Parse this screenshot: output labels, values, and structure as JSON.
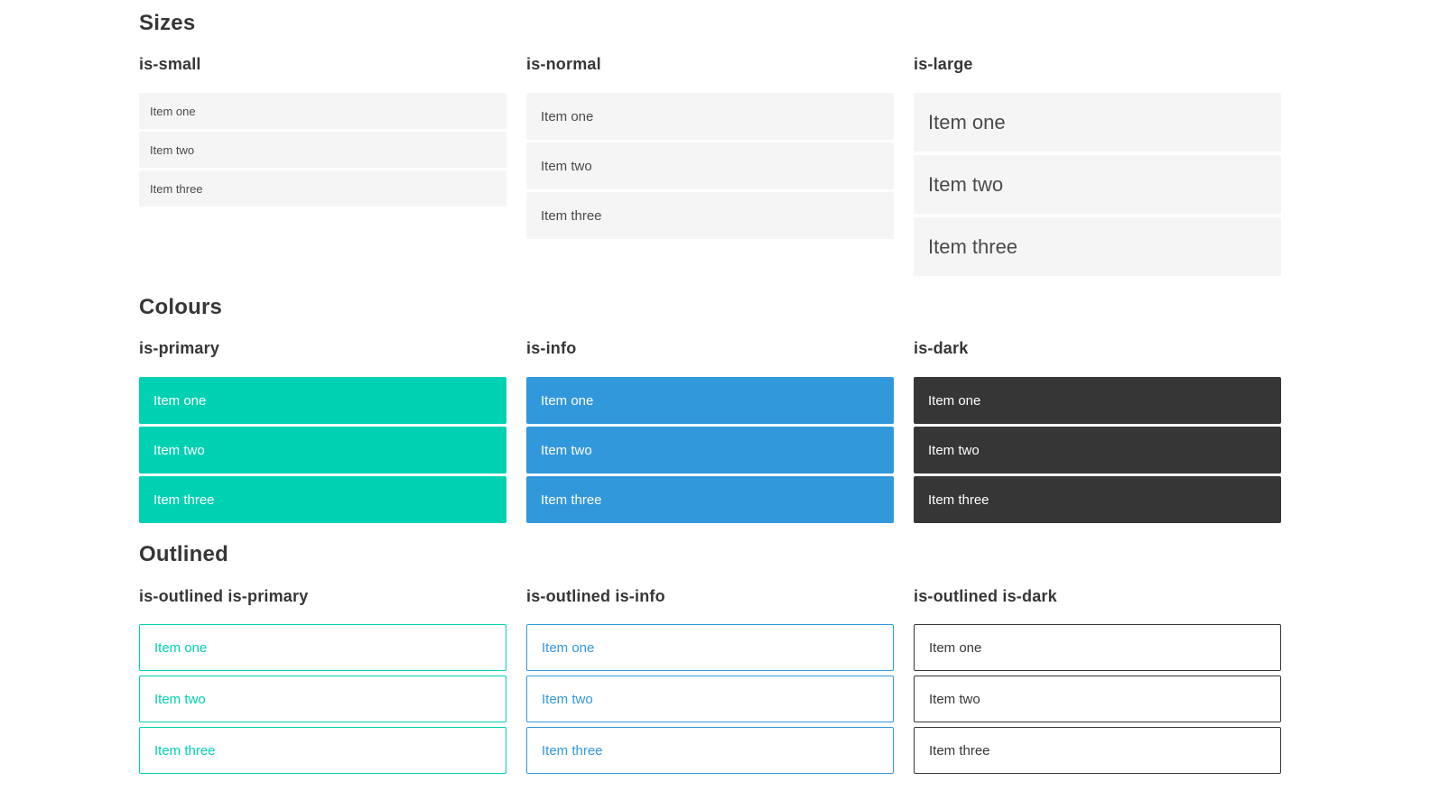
{
  "colors": {
    "primary": "#00d1b2",
    "info": "#3298dc",
    "dark": "#363636",
    "light": "#f5f5f5"
  },
  "sections": [
    {
      "title": "Sizes",
      "groups": [
        {
          "label": "is-small",
          "items": [
            "Item one",
            "Item two",
            "Item three"
          ]
        },
        {
          "label": "is-normal",
          "items": [
            "Item one",
            "Item two",
            "Item three"
          ]
        },
        {
          "label": "is-large",
          "items": [
            "Item one",
            "Item two",
            "Item three"
          ]
        }
      ]
    },
    {
      "title": "Colours",
      "groups": [
        {
          "label": "is-primary",
          "items": [
            "Item one",
            "Item two",
            "Item three"
          ]
        },
        {
          "label": "is-info",
          "items": [
            "Item one",
            "Item two",
            "Item three"
          ]
        },
        {
          "label": "is-dark",
          "items": [
            "Item one",
            "Item two",
            "Item three"
          ]
        }
      ]
    },
    {
      "title": "Outlined",
      "groups": [
        {
          "label": "is-outlined is-primary",
          "items": [
            "Item one",
            "Item two",
            "Item three"
          ]
        },
        {
          "label": "is-outlined is-info",
          "items": [
            "Item one",
            "Item two",
            "Item three"
          ]
        },
        {
          "label": "is-outlined is-dark",
          "items": [
            "Item one",
            "Item two",
            "Item three"
          ]
        }
      ]
    }
  ]
}
